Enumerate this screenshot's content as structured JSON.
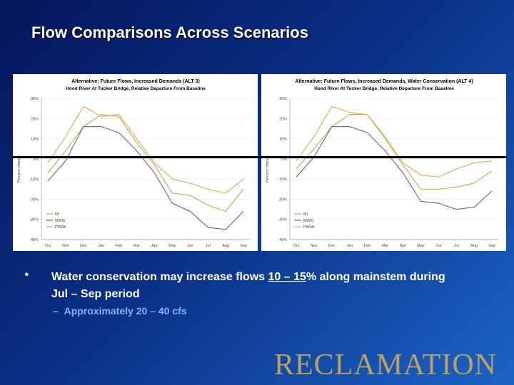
{
  "slide": {
    "title": "Flow Comparisons Across Scenarios",
    "bullet_parts": [
      "Water conservation may increase flows ",
      "10",
      " – ",
      "15",
      "% along mainstem during Jul – Sep period"
    ],
    "sub_bullet": "Approximately 20 – 40 cfs",
    "logo": "RECLAMATION",
    "colors": {
      "logo": "#b9a262",
      "sub_bullet": "#7ab8ff"
    }
  },
  "chart_data": [
    {
      "type": "line",
      "title_prefix": "Alternative:",
      "title": "Future Flows, Increased Demands (ALT 3)",
      "subtitle": "Hood River At Tucker Bridge, Relative Departure From Baseline",
      "ylabel": "Percent change",
      "xlabel": "",
      "categories": [
        "Oct",
        "Nov",
        "Dec",
        "Jan",
        "Feb",
        "Mar",
        "Apr",
        "May",
        "Jun",
        "Jul",
        "Aug",
        "Sep"
      ],
      "yticks": [
        "30%",
        "20%",
        "10%",
        "0%",
        "-10%",
        "-20%",
        "-30%",
        "-40%"
      ],
      "ylim": [
        -40,
        30
      ],
      "legend_position": "bottom-left",
      "series": [
        {
          "name": "MI",
          "color": "#a8c05a",
          "values": [
            -7,
            4,
            16,
            22,
            21,
            8,
            -3,
            -17,
            -18,
            -23,
            -26,
            -15
          ]
        },
        {
          "name": "MW/b",
          "color": "#8064a2",
          "values": [
            -11,
            -1,
            16,
            16,
            13,
            4,
            -7,
            -22,
            -26,
            -34,
            -35,
            -26
          ]
        },
        {
          "name": "PW/W",
          "color": "#f0a860",
          "values": [
            -2,
            11,
            26,
            21,
            22,
            10,
            -2,
            -10,
            -12,
            -15,
            -17,
            -10
          ]
        }
      ]
    },
    {
      "type": "line",
      "title_prefix": "Alternative:",
      "title": "Future Flows, Increased Demands, Water Conservation (ALT 4)",
      "subtitle": "Hood River At Tucker Bridge, Relative Departure From Baseline",
      "ylabel": "Percent change",
      "xlabel": "",
      "categories": [
        "Oct",
        "Nov",
        "Dec",
        "Jan",
        "Feb",
        "Mar",
        "Apr",
        "May",
        "Jun",
        "Jul",
        "Aug",
        "Sep"
      ],
      "yticks": [
        "30%",
        "20%",
        "10%",
        "0%",
        "-10%",
        "-20%",
        "-30%",
        "-40%"
      ],
      "ylim": [
        -40,
        30
      ],
      "legend_position": "bottom-left",
      "series": [
        {
          "name": "MI",
          "color": "#a8c05a",
          "values": [
            -5,
            5,
            16,
            22,
            22,
            10,
            -3,
            -15,
            -15,
            -14,
            -12,
            -6
          ]
        },
        {
          "name": "MW/b",
          "color": "#8064a2",
          "values": [
            -9,
            1,
            16,
            16,
            13,
            4,
            -7,
            -21,
            -22,
            -25,
            -24,
            -16
          ]
        },
        {
          "name": "PW/W",
          "color": "#f0a860",
          "values": [
            -1,
            11,
            26,
            23,
            22,
            11,
            -2,
            -8,
            -9,
            -5,
            -2,
            -1
          ]
        }
      ]
    }
  ]
}
